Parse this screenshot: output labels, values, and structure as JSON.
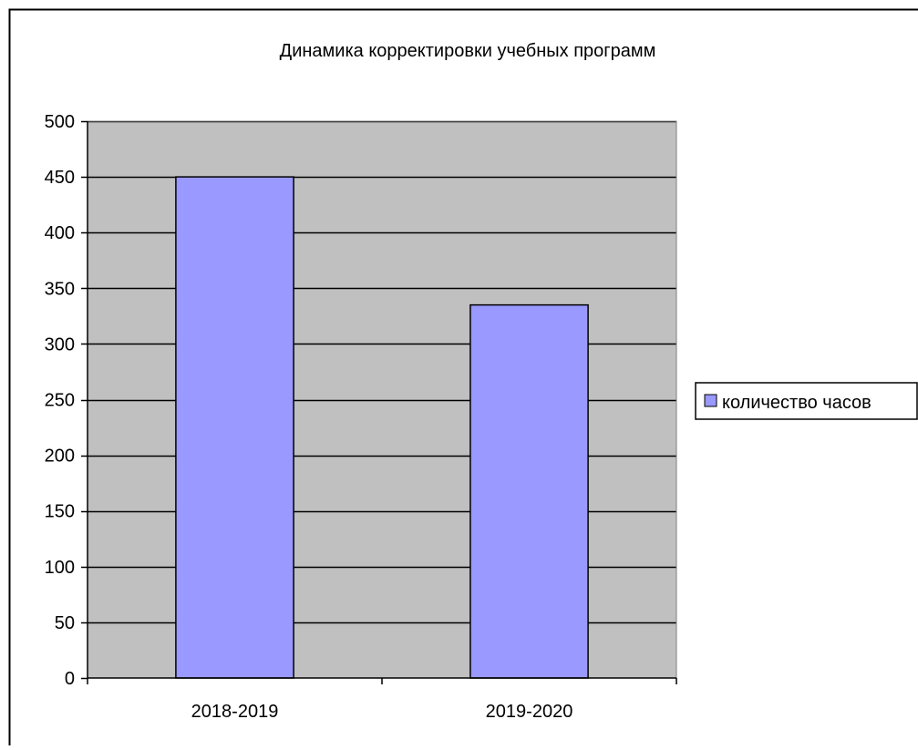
{
  "chart_data": {
    "type": "bar",
    "title": "Динамика корректировки учебных программ",
    "categories": [
      "2018-2019",
      "2019-2020"
    ],
    "series": [
      {
        "name": "количество часов",
        "values": [
          450,
          335
        ]
      }
    ],
    "xlabel": "",
    "ylabel": "",
    "ylim": [
      0,
      500
    ],
    "yticks": [
      0,
      50,
      100,
      150,
      200,
      250,
      300,
      350,
      400,
      450,
      500
    ],
    "grid": true,
    "legend_position": "right",
    "colors": {
      "bar_fill": "#9999ff",
      "plot_background": "#c0c0c0",
      "gridline": "#000000",
      "border": "#000000"
    }
  }
}
